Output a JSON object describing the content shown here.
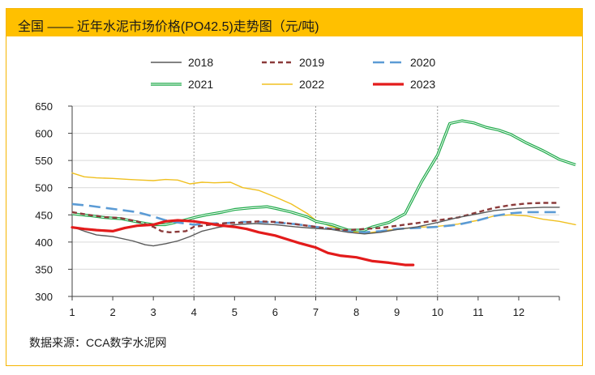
{
  "header": {
    "title": "全国 —— 近年水泥市场价格(PO42.5)走势图（元/吨)"
  },
  "footer": {
    "source": "数据来源：CCA数字水泥网"
  },
  "chart_data": {
    "type": "line",
    "title": "全国 —— 近年水泥市场价格(PO42.5)走势图（元/吨)",
    "xlabel": "",
    "ylabel": "",
    "xlim": [
      1,
      13
    ],
    "ylim": [
      300,
      650
    ],
    "yticks": [
      300,
      350,
      400,
      450,
      500,
      550,
      600,
      650
    ],
    "xticks": [
      "1",
      "2",
      "3",
      "4",
      "5",
      "6",
      "7",
      "8",
      "9",
      "10",
      "11",
      "12"
    ],
    "grid": "horizontal",
    "quarter_lines": [
      4,
      7,
      10
    ],
    "legend_position": "top",
    "series": [
      {
        "name": "2018",
        "color": "#595959",
        "style": "solid",
        "width": 1.4,
        "points": [
          [
            1.0,
            428
          ],
          [
            1.3,
            420
          ],
          [
            1.6,
            413
          ],
          [
            2.0,
            410
          ],
          [
            2.5,
            402
          ],
          [
            2.8,
            395
          ],
          [
            3.0,
            393
          ],
          [
            3.3,
            397
          ],
          [
            3.6,
            402
          ],
          [
            3.9,
            410
          ],
          [
            4.2,
            420
          ],
          [
            4.6,
            427
          ],
          [
            5.0,
            432
          ],
          [
            5.5,
            434
          ],
          [
            6.0,
            432
          ],
          [
            6.5,
            428
          ],
          [
            7.0,
            425
          ],
          [
            7.4,
            423
          ],
          [
            7.8,
            418
          ],
          [
            8.2,
            415
          ],
          [
            8.6,
            418
          ],
          [
            9.0,
            423
          ],
          [
            9.5,
            428
          ],
          [
            10.0,
            436
          ],
          [
            10.5,
            445
          ],
          [
            11.0,
            452
          ],
          [
            11.4,
            458
          ],
          [
            12.0,
            462
          ],
          [
            12.6,
            464
          ],
          [
            13.0,
            464
          ]
        ]
      },
      {
        "name": "2019",
        "color": "#8b3a3a",
        "style": "dash",
        "width": 2.4,
        "points": [
          [
            1.0,
            455
          ],
          [
            1.4,
            450
          ],
          [
            1.8,
            446
          ],
          [
            2.2,
            444
          ],
          [
            2.6,
            438
          ],
          [
            3.0,
            428
          ],
          [
            3.2,
            420
          ],
          [
            3.4,
            418
          ],
          [
            3.8,
            420
          ],
          [
            4.0,
            428
          ],
          [
            4.4,
            432
          ],
          [
            4.8,
            435
          ],
          [
            5.2,
            436
          ],
          [
            5.6,
            438
          ],
          [
            6.0,
            437
          ],
          [
            6.5,
            433
          ],
          [
            7.0,
            428
          ],
          [
            7.4,
            424
          ],
          [
            7.8,
            422
          ],
          [
            8.2,
            424
          ],
          [
            8.6,
            426
          ],
          [
            9.0,
            430
          ],
          [
            9.5,
            435
          ],
          [
            10.0,
            440
          ],
          [
            10.5,
            445
          ],
          [
            11.0,
            455
          ],
          [
            11.4,
            463
          ],
          [
            11.8,
            468
          ],
          [
            12.2,
            471
          ],
          [
            12.6,
            472
          ],
          [
            13.0,
            472
          ]
        ]
      },
      {
        "name": "2020",
        "color": "#5b9bd5",
        "style": "longdash",
        "width": 2.6,
        "points": [
          [
            1.0,
            470
          ],
          [
            1.4,
            467
          ],
          [
            1.8,
            463
          ],
          [
            2.2,
            459
          ],
          [
            2.6,
            455
          ],
          [
            3.0,
            447
          ],
          [
            3.3,
            440
          ],
          [
            3.6,
            436
          ],
          [
            4.0,
            432
          ],
          [
            4.4,
            434
          ],
          [
            4.8,
            435
          ],
          [
            5.2,
            437
          ],
          [
            5.6,
            437
          ],
          [
            6.0,
            436
          ],
          [
            6.5,
            433
          ],
          [
            7.0,
            428
          ],
          [
            7.4,
            424
          ],
          [
            7.8,
            420
          ],
          [
            8.2,
            418
          ],
          [
            8.6,
            420
          ],
          [
            9.0,
            424
          ],
          [
            9.5,
            426
          ],
          [
            10.0,
            428
          ],
          [
            10.5,
            432
          ],
          [
            11.0,
            440
          ],
          [
            11.4,
            448
          ],
          [
            11.8,
            453
          ],
          [
            12.2,
            455
          ],
          [
            12.6,
            455
          ],
          [
            13.0,
            455
          ]
        ]
      },
      {
        "name": "2021",
        "color": "#1faa4a",
        "style": "double",
        "width": 1.6,
        "points": [
          [
            1.0,
            452
          ],
          [
            1.4,
            449
          ],
          [
            1.8,
            445
          ],
          [
            2.2,
            443
          ],
          [
            2.6,
            437
          ],
          [
            3.0,
            432
          ],
          [
            3.3,
            432
          ],
          [
            3.6,
            437
          ],
          [
            4.0,
            445
          ],
          [
            4.3,
            450
          ],
          [
            4.7,
            455
          ],
          [
            5.0,
            460
          ],
          [
            5.4,
            463
          ],
          [
            5.8,
            465
          ],
          [
            6.0,
            462
          ],
          [
            6.4,
            455
          ],
          [
            6.8,
            446
          ],
          [
            7.0,
            438
          ],
          [
            7.4,
            432
          ],
          [
            7.8,
            422
          ],
          [
            8.2,
            422
          ],
          [
            8.4,
            428
          ],
          [
            8.8,
            436
          ],
          [
            9.2,
            452
          ],
          [
            9.6,
            510
          ],
          [
            10.0,
            560
          ],
          [
            10.3,
            618
          ],
          [
            10.6,
            623
          ],
          [
            10.9,
            619
          ],
          [
            11.2,
            611
          ],
          [
            11.5,
            606
          ],
          [
            11.8,
            598
          ],
          [
            12.2,
            582
          ],
          [
            12.6,
            568
          ],
          [
            13.0,
            552
          ],
          [
            13.4,
            542
          ]
        ]
      },
      {
        "name": "2022",
        "color": "#f0c020",
        "style": "solid",
        "width": 1.4,
        "points": [
          [
            1.0,
            527
          ],
          [
            1.3,
            520
          ],
          [
            1.6,
            518
          ],
          [
            2.0,
            517
          ],
          [
            2.4,
            515
          ],
          [
            2.7,
            514
          ],
          [
            3.0,
            513
          ],
          [
            3.3,
            515
          ],
          [
            3.6,
            514
          ],
          [
            3.9,
            507
          ],
          [
            4.2,
            510
          ],
          [
            4.5,
            509
          ],
          [
            4.9,
            510
          ],
          [
            5.2,
            500
          ],
          [
            5.6,
            495
          ],
          [
            6.0,
            483
          ],
          [
            6.4,
            470
          ],
          [
            6.8,
            452
          ],
          [
            7.0,
            440
          ],
          [
            7.4,
            428
          ],
          [
            7.8,
            420
          ],
          [
            8.2,
            416
          ],
          [
            8.6,
            420
          ],
          [
            9.0,
            424
          ],
          [
            9.5,
            427
          ],
          [
            10.0,
            429
          ],
          [
            10.5,
            433
          ],
          [
            11.0,
            440
          ],
          [
            11.4,
            448
          ],
          [
            11.8,
            450
          ],
          [
            12.2,
            448
          ],
          [
            12.6,
            442
          ],
          [
            13.0,
            438
          ],
          [
            13.4,
            432
          ]
        ]
      },
      {
        "name": "2023",
        "color": "#e31b1b",
        "style": "solid",
        "width": 3.2,
        "points": [
          [
            1.0,
            427
          ],
          [
            1.3,
            424
          ],
          [
            1.6,
            422
          ],
          [
            2.0,
            420
          ],
          [
            2.3,
            426
          ],
          [
            2.6,
            430
          ],
          [
            3.0,
            432
          ],
          [
            3.3,
            438
          ],
          [
            3.6,
            440
          ],
          [
            4.0,
            438
          ],
          [
            4.3,
            435
          ],
          [
            4.6,
            431
          ],
          [
            5.0,
            428
          ],
          [
            5.3,
            424
          ],
          [
            5.6,
            418
          ],
          [
            6.0,
            412
          ],
          [
            6.3,
            405
          ],
          [
            6.6,
            398
          ],
          [
            7.0,
            390
          ],
          [
            7.3,
            380
          ],
          [
            7.6,
            375
          ],
          [
            8.0,
            372
          ],
          [
            8.4,
            365
          ],
          [
            8.8,
            362
          ],
          [
            9.2,
            358
          ],
          [
            9.4,
            358
          ]
        ]
      }
    ]
  }
}
